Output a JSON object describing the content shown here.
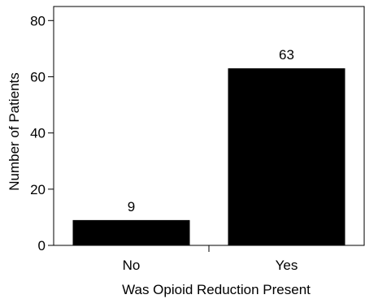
{
  "chart_data": {
    "type": "bar",
    "title": "",
    "xlabel": "Was Opioid Reduction Present",
    "ylabel": "Number of Patients",
    "categories": [
      "No",
      "Yes"
    ],
    "values": [
      9,
      63
    ],
    "ylim": [
      0,
      85
    ],
    "yticks": [
      0,
      20,
      40,
      60,
      80
    ],
    "bar_color": "#000000",
    "grid": false,
    "legend": "none"
  }
}
